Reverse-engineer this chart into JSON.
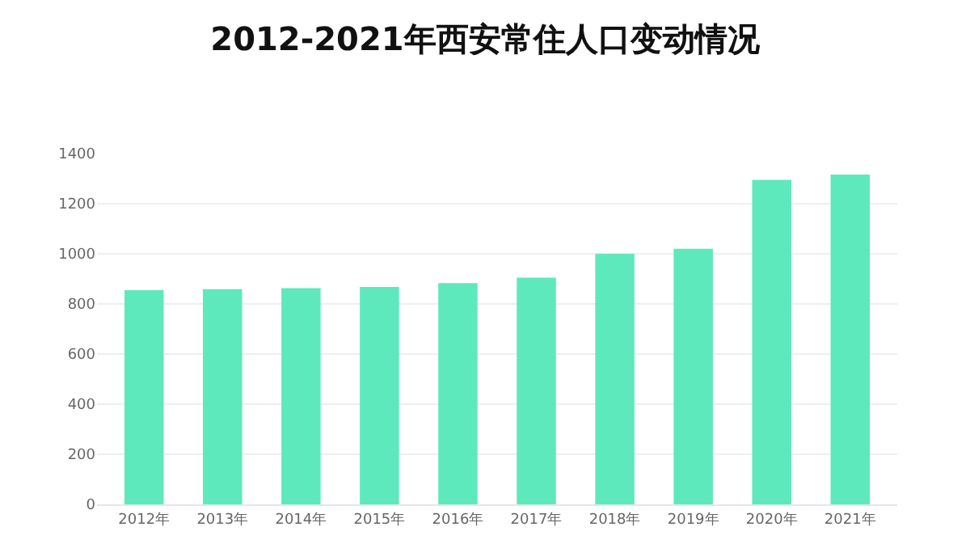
{
  "chart_data": {
    "type": "bar",
    "title": "2012-2021年西安常住人口变动情况",
    "categories": [
      "2012年",
      "2013年",
      "2014年",
      "2015年",
      "2016年",
      "2017年",
      "2018年",
      "2019年",
      "2020年",
      "2021年"
    ],
    "values": [
      855,
      859,
      863,
      868,
      883,
      905,
      1000,
      1020,
      1295,
      1316
    ],
    "color": "#5ee9bc",
    "ylim": [
      0,
      1400
    ],
    "yticks": [
      0,
      200,
      400,
      600,
      800,
      1000,
      1200,
      1400
    ],
    "grid": "y"
  }
}
